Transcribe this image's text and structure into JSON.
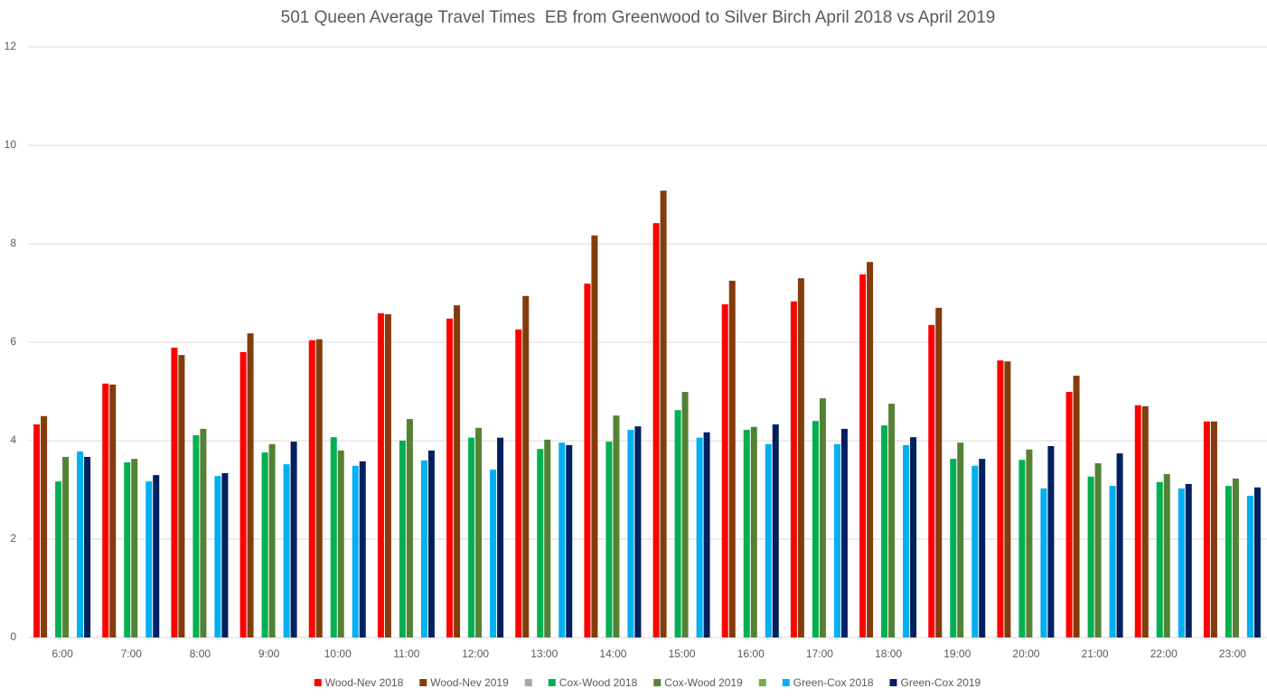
{
  "chart_data": {
    "type": "bar",
    "title": "501 Queen Average Travel Times  EB from Greenwood to Silver Birch April 2018 vs April 2019",
    "categories": [
      "6:00",
      "7:00",
      "8:00",
      "9:00",
      "10:00",
      "11:00",
      "12:00",
      "13:00",
      "14:00",
      "15:00",
      "16:00",
      "17:00",
      "18:00",
      "19:00",
      "20:00",
      "21:00",
      "22:00",
      "23:00"
    ],
    "series": [
      {
        "name": "Wood-Nev 2018",
        "color": "#ff0000",
        "values": [
          4.33,
          5.16,
          5.89,
          5.8,
          6.04,
          6.59,
          6.48,
          6.26,
          7.19,
          8.42,
          6.77,
          6.83,
          7.38,
          6.35,
          5.63,
          4.99,
          4.72,
          4.39
        ]
      },
      {
        "name": "Wood-Nev 2019",
        "color": "#843c0c",
        "values": [
          4.5,
          5.14,
          5.74,
          6.18,
          6.06,
          6.57,
          6.75,
          6.94,
          8.17,
          9.08,
          7.25,
          7.3,
          7.63,
          6.7,
          5.61,
          5.32,
          4.7,
          4.39
        ]
      },
      {
        "color": "#a5a5a5",
        "values": [
          null,
          null,
          null,
          null,
          null,
          null,
          null,
          null,
          null,
          null,
          null,
          null,
          null,
          null,
          null,
          null,
          null,
          null
        ]
      },
      {
        "name": "Cox-Wood 2018",
        "color": "#00b050",
        "values": [
          3.17,
          3.56,
          4.11,
          3.76,
          4.07,
          4.0,
          4.06,
          3.83,
          3.98,
          4.62,
          4.22,
          4.4,
          4.31,
          3.63,
          3.61,
          3.27,
          3.16,
          3.08
        ]
      },
      {
        "name": "Cox-Wood 2019",
        "color": "#548235",
        "values": [
          3.67,
          3.63,
          4.24,
          3.93,
          3.8,
          4.44,
          4.26,
          4.02,
          4.51,
          4.99,
          4.28,
          4.86,
          4.75,
          3.96,
          3.82,
          3.54,
          3.32,
          3.23
        ]
      },
      {
        "color": "#70ad47",
        "values": [
          null,
          null,
          null,
          null,
          null,
          null,
          null,
          null,
          null,
          null,
          null,
          null,
          null,
          null,
          null,
          null,
          null,
          null
        ]
      },
      {
        "name": "Green-Cox 2018",
        "color": "#00b0f0",
        "values": [
          3.78,
          3.17,
          3.28,
          3.52,
          3.49,
          3.6,
          3.41,
          3.96,
          4.22,
          4.06,
          3.93,
          3.93,
          3.91,
          3.49,
          3.03,
          3.08,
          3.03,
          2.88
        ]
      },
      {
        "name": "Green-Cox 2019",
        "color": "#002060",
        "values": [
          3.67,
          3.3,
          3.34,
          3.98,
          3.58,
          3.8,
          4.06,
          3.91,
          4.29,
          4.17,
          4.33,
          4.24,
          4.07,
          3.63,
          3.89,
          3.74,
          3.12,
          3.05
        ]
      }
    ],
    "ylim": [
      0,
      12
    ],
    "yticks": [
      0,
      2,
      4,
      6,
      8,
      10,
      12
    ],
    "grid": true,
    "legend": "bottom"
  }
}
